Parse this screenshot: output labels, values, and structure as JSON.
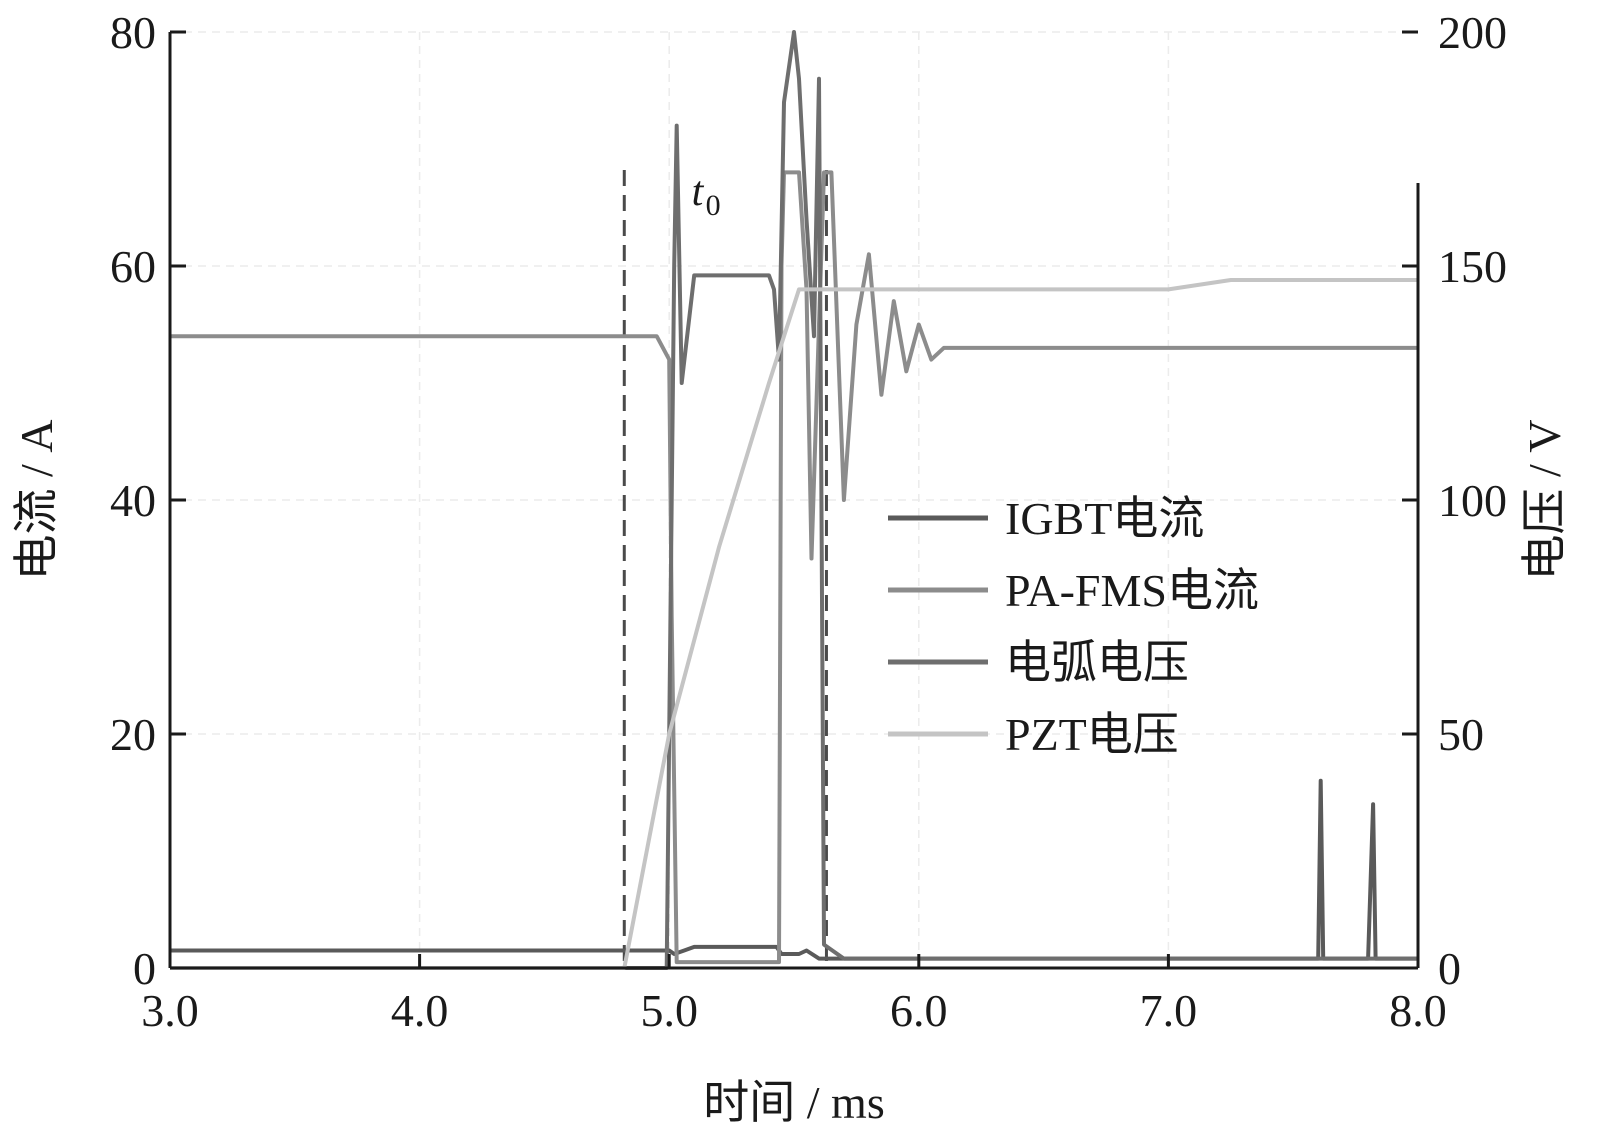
{
  "chart_data": {
    "type": "line",
    "title": "",
    "xlabel": "时间 / ms",
    "ylabel_left": "电流 / A",
    "ylabel_right": "电压 / V",
    "xlim": [
      3.0,
      8.0
    ],
    "ylim_left": [
      0,
      80
    ],
    "ylim_right": [
      0,
      200
    ],
    "x_ticks": [
      "3.0",
      "4.0",
      "5.0",
      "6.0",
      "7.0",
      "8.0"
    ],
    "y_left_ticks": [
      "0",
      "20",
      "40",
      "60",
      "80"
    ],
    "y_right_ticks": [
      "0",
      "50",
      "100",
      "150",
      "200"
    ],
    "grid": true,
    "legend_position": "center-right",
    "annotation": {
      "text": "t",
      "subscript": "0",
      "x": 5.25
    },
    "markers": [
      4.82,
      5.63
    ],
    "series": [
      {
        "name": "IGBT电流",
        "axis": "left",
        "color": "#5a5a5a",
        "x": [
          3.0,
          3.4,
          3.8,
          4.2,
          4.6,
          4.82,
          4.98,
          5.0,
          5.02,
          5.06,
          5.1,
          5.2,
          5.3,
          5.4,
          5.43,
          5.45,
          5.5,
          5.52,
          5.55,
          5.6,
          5.65,
          6.0,
          6.5,
          7.0,
          7.5,
          7.6,
          7.61,
          7.62,
          7.8,
          7.82,
          7.83,
          8.0
        ],
        "y": [
          1.5,
          1.5,
          1.5,
          1.5,
          1.5,
          1.5,
          1.5,
          1.5,
          1.2,
          1.5,
          1.8,
          1.8,
          1.8,
          1.8,
          1.8,
          1.2,
          1.2,
          1.2,
          1.5,
          0.8,
          0.8,
          0.8,
          0.8,
          0.8,
          0.8,
          0.8,
          16.0,
          0.8,
          0.8,
          14.0,
          0.8,
          0.8
        ]
      },
      {
        "name": "PA-FMS电流",
        "axis": "left",
        "color": "#8c8c8c",
        "x": [
          3.0,
          3.5,
          4.0,
          4.5,
          4.8,
          4.95,
          5.0,
          5.01,
          5.03,
          5.05,
          5.1,
          5.2,
          5.3,
          5.4,
          5.44,
          5.45,
          5.46,
          5.5,
          5.52,
          5.55,
          5.57,
          5.6,
          5.62,
          5.65,
          5.7,
          5.75,
          5.8,
          5.85,
          5.9,
          5.95,
          6.0,
          6.05,
          6.1,
          6.5,
          7.0,
          7.5,
          7.8,
          8.0
        ],
        "y": [
          54.0,
          54.0,
          54.0,
          54.0,
          54.0,
          54.0,
          52.0,
          30.0,
          0.5,
          0.5,
          0.5,
          0.5,
          0.5,
          0.5,
          0.5,
          60.0,
          68.0,
          68.0,
          68.0,
          58.0,
          35.0,
          55.0,
          68.0,
          68.0,
          40.0,
          55.0,
          61.0,
          49.0,
          57.0,
          51.0,
          55.0,
          52.0,
          53.0,
          53.0,
          53.0,
          53.0,
          53.0,
          53.0
        ]
      },
      {
        "name": "电弧电压",
        "axis": "right",
        "color": "#6e6e6e",
        "x": [
          3.0,
          4.0,
          4.82,
          4.99,
          5.02,
          5.03,
          5.05,
          5.1,
          5.2,
          5.3,
          5.4,
          5.42,
          5.44,
          5.46,
          5.5,
          5.52,
          5.55,
          5.58,
          5.6,
          5.62,
          5.7,
          6.0,
          7.0,
          8.0
        ],
        "y": [
          0,
          0,
          0,
          0,
          150,
          180,
          125,
          148,
          148,
          148,
          148,
          145,
          130,
          185,
          200,
          190,
          160,
          135,
          190,
          5,
          2,
          2,
          2,
          2
        ]
      },
      {
        "name": "PZT电压",
        "axis": "right",
        "color": "#c4c4c4",
        "x": [
          3.0,
          4.0,
          4.82,
          5.0,
          5.2,
          5.4,
          5.52,
          5.6,
          6.0,
          6.5,
          7.0,
          7.25,
          7.5,
          8.0
        ],
        "y": [
          0,
          0,
          0,
          50,
          90,
          125,
          145,
          145,
          145,
          145,
          145,
          147,
          147,
          147
        ]
      }
    ]
  }
}
